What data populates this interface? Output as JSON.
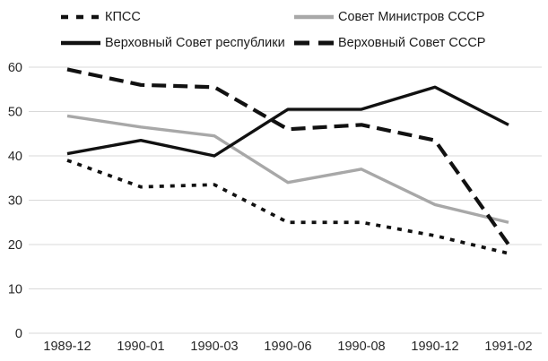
{
  "chart_data": {
    "type": "line",
    "categories": [
      "1989-12",
      "1990-01",
      "1990-03",
      "1990-06",
      "1990-08",
      "1990-12",
      "1991-02"
    ],
    "series": [
      {
        "name": "КПСС",
        "color": "#111111",
        "line_style": "dotted",
        "values": [
          39,
          33,
          33.5,
          25,
          25,
          22,
          18
        ]
      },
      {
        "name": "Совет Министров СССР",
        "color": "#a8a8a8",
        "line_style": "solid",
        "values": [
          49,
          46.5,
          44.5,
          34,
          37,
          29,
          25
        ]
      },
      {
        "name": "Верховный Совет республики",
        "color": "#111111",
        "line_style": "solid",
        "values": [
          40.5,
          43.5,
          40,
          50.5,
          50.5,
          55.5,
          47
        ]
      },
      {
        "name": "Верховный Совет СССР",
        "color": "#111111",
        "line_style": "long-dash",
        "values": [
          59.5,
          56,
          55.5,
          46,
          47,
          43.5,
          20
        ]
      }
    ],
    "title": "",
    "xlabel": "",
    "ylabel": "",
    "ylim": [
      0,
      60
    ],
    "yticks": [
      0,
      10,
      20,
      30,
      40,
      50,
      60
    ],
    "grid": "horizontal",
    "gridline_color": "#d9d9d9",
    "legend_position": "top"
  }
}
